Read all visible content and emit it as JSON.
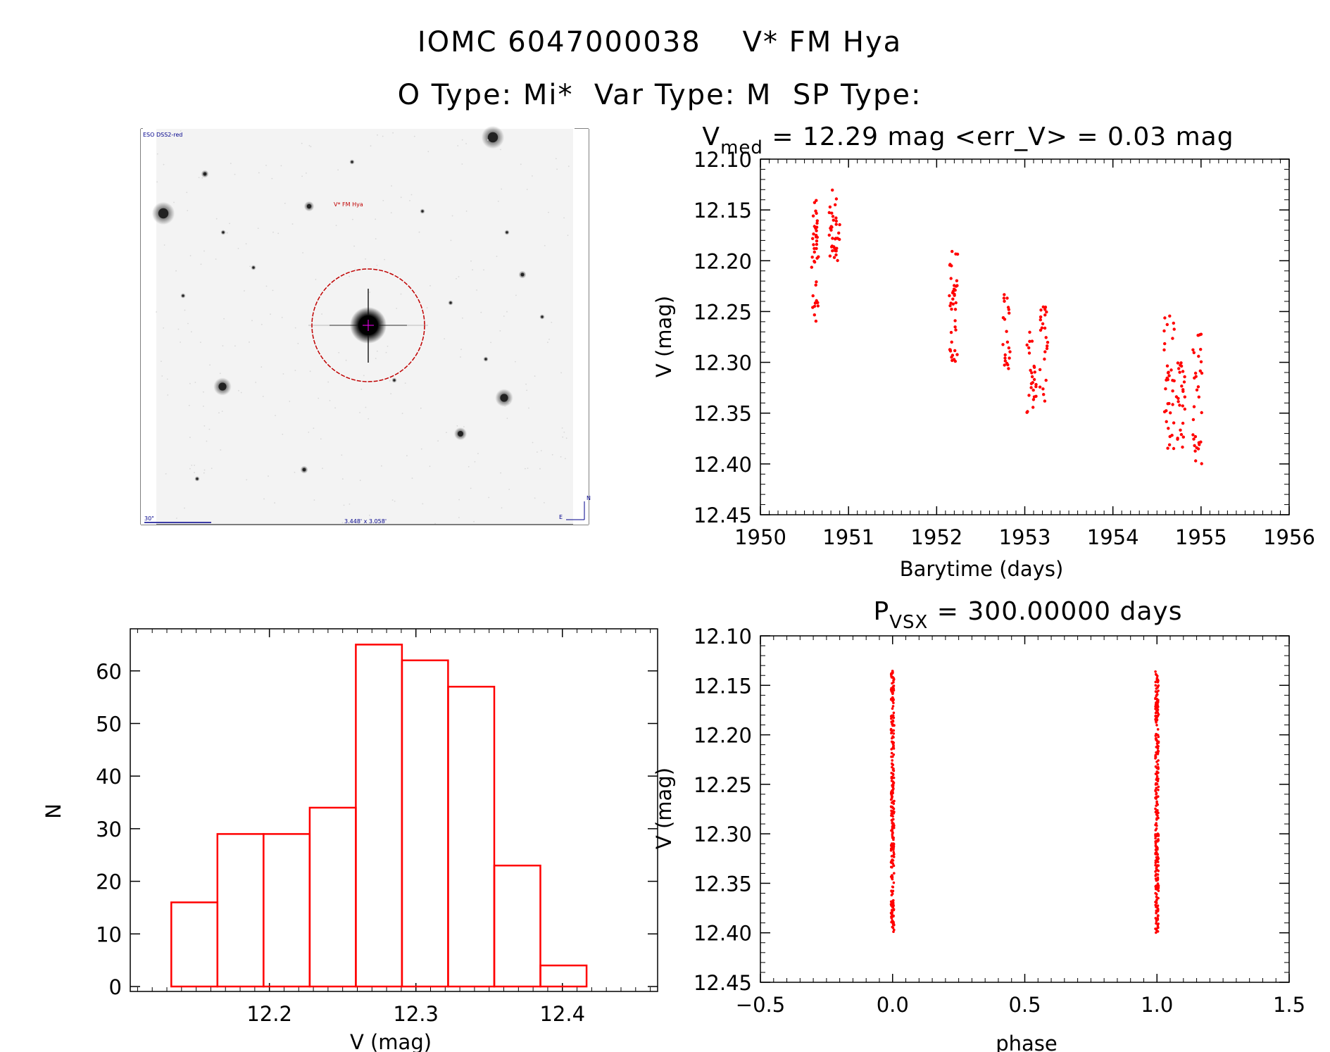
{
  "header": {
    "title_line1": "IOMC 6047000038    V* FM Hya",
    "title_line2": "O Type: Mi*  Var Type: M  SP Type:"
  },
  "finder": {
    "survey_label": "ESO DSS2-red",
    "target_label": "V* FM Hya",
    "scale_label": "30\"",
    "fov_label": "3.448' x 3.058'",
    "compass_n": "N",
    "compass_e": "E"
  },
  "colors": {
    "data": "#ff0000",
    "axes": "#000000"
  },
  "chart_data": [
    {
      "id": "lightcurve",
      "type": "scatter",
      "title_main": "V",
      "title_sub": "med",
      "title_rest": " = 12.29 mag <err_V> = 0.03 mag",
      "xlabel": "Barytime (days)",
      "ylabel": "V (mag)",
      "xlim": [
        1950,
        1956
      ],
      "ylim": [
        12.45,
        12.1
      ],
      "xticks": [
        1950,
        1951,
        1952,
        1953,
        1954,
        1955,
        1956
      ],
      "xtick_labels": [
        "1950",
        "1951",
        "1952",
        "1953",
        "1954",
        "1955",
        "1956"
      ],
      "yticks": [
        12.1,
        12.15,
        12.2,
        12.25,
        12.3,
        12.35,
        12.4,
        12.45
      ],
      "ytick_labels": [
        "12.10",
        "12.15",
        "12.20",
        "12.25",
        "12.30",
        "12.35",
        "12.40",
        "12.45"
      ],
      "clusters": [
        {
          "x": [
            1950.58,
            1950.66
          ],
          "y": [
            12.14,
            12.26
          ],
          "n": 40
        },
        {
          "x": [
            1950.78,
            1950.9
          ],
          "y": [
            12.13,
            12.2
          ],
          "n": 35
        },
        {
          "x": [
            1952.14,
            1952.24
          ],
          "y": [
            12.19,
            12.3
          ],
          "n": 40
        },
        {
          "x": [
            1952.75,
            1952.84
          ],
          "y": [
            12.23,
            12.31
          ],
          "n": 22
        },
        {
          "x": [
            1953.02,
            1953.13
          ],
          "y": [
            12.27,
            12.35
          ],
          "n": 26
        },
        {
          "x": [
            1953.17,
            1953.26
          ],
          "y": [
            12.24,
            12.34
          ],
          "n": 24
        },
        {
          "x": [
            1954.58,
            1954.7
          ],
          "y": [
            12.25,
            12.39
          ],
          "n": 36
        },
        {
          "x": [
            1954.72,
            1954.82
          ],
          "y": [
            12.3,
            12.39
          ],
          "n": 26
        },
        {
          "x": [
            1954.9,
            1955.02
          ],
          "y": [
            12.27,
            12.4
          ],
          "n": 32
        }
      ]
    },
    {
      "id": "histogram",
      "type": "bar",
      "title": "",
      "xlabel": "V (mag)",
      "ylabel": "N",
      "xlim": [
        12.105,
        12.465
      ],
      "ylim": [
        0,
        68
      ],
      "bin_edges": [
        12.133,
        12.1645,
        12.196,
        12.2275,
        12.259,
        12.2905,
        12.322,
        12.3535,
        12.385,
        12.4165
      ],
      "values": [
        16,
        29,
        29,
        34,
        65,
        62,
        57,
        23,
        4
      ],
      "xticks": [
        12.2,
        12.3,
        12.4
      ],
      "xtick_labels": [
        "12.2",
        "12.3",
        "12.4"
      ],
      "yticks": [
        0,
        10,
        20,
        30,
        40,
        50,
        60
      ],
      "ytick_labels": [
        "0",
        "10",
        "20",
        "30",
        "40",
        "50",
        "60"
      ]
    },
    {
      "id": "phased",
      "type": "scatter",
      "title_main": "P",
      "title_sub": "VSX",
      "title_rest": " = 300.00000 days",
      "xlabel": "phase",
      "ylabel": "V (mag)",
      "xlim": [
        -0.5,
        1.5
      ],
      "ylim": [
        12.45,
        12.1
      ],
      "xticks": [
        -0.5,
        0.0,
        0.5,
        1.0,
        1.5
      ],
      "xtick_labels": [
        "−0.5",
        "0.0",
        "0.5",
        "1.0",
        "1.5"
      ],
      "yticks": [
        12.1,
        12.15,
        12.2,
        12.25,
        12.3,
        12.35,
        12.4,
        12.45
      ],
      "ytick_labels": [
        "12.10",
        "12.15",
        "12.20",
        "12.25",
        "12.30",
        "12.35",
        "12.40",
        "12.45"
      ],
      "columns": [
        {
          "phase": 0.0,
          "y": [
            12.135,
            12.4
          ],
          "n": 280
        },
        {
          "phase": 1.0,
          "y": [
            12.135,
            12.4
          ],
          "n": 280
        }
      ]
    }
  ]
}
